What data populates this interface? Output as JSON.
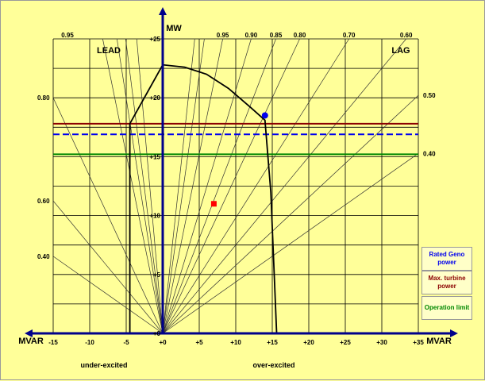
{
  "chart_data": {
    "type": "line",
    "title": "",
    "x_axis": {
      "label": "MVAR",
      "range": [
        -15,
        35
      ],
      "ticks": [
        "-15",
        "-10",
        "-5",
        "+0",
        "+5",
        "+10",
        "+15",
        "+20",
        "+25",
        "+30",
        "+35"
      ]
    },
    "y_axis": {
      "label": "MW",
      "range": [
        0,
        25
      ],
      "ticks": [
        "+0",
        "+5",
        "+10",
        "+15",
        "+20",
        "+25"
      ]
    },
    "y_axis_extra_label": "MVAR",
    "regions": {
      "left": "LEAD",
      "right": "LAG"
    },
    "bottom_labels": {
      "left": "under-excited",
      "right": "over-excited"
    },
    "power_factor_lines": {
      "lag": [
        "0.95",
        "0.90",
        "0.85",
        "0.80",
        "0.70",
        "0.60",
        "0.50",
        "0.40"
      ],
      "lead": [
        "0.95",
        "0.80",
        "0.60",
        "0.40"
      ]
    },
    "capability_curve": [
      [
        -4.5,
        0
      ],
      [
        -4.5,
        17.8
      ],
      [
        0,
        22.8
      ],
      [
        3,
        22.6
      ],
      [
        6,
        22
      ],
      [
        9,
        20.8
      ],
      [
        12,
        19.2
      ],
      [
        14,
        18.1
      ],
      [
        14.8,
        12
      ],
      [
        15.6,
        0
      ]
    ],
    "horizontal_lines": [
      {
        "name": "Max. turbine power",
        "y": 17.8,
        "color": "#8b0000",
        "style": "solid"
      },
      {
        "name": "Rated Geno power",
        "y": 16.9,
        "color": "#0000ee",
        "style": "dashed"
      },
      {
        "name": "Operation limit",
        "y": 15.2,
        "color": "#008800",
        "style": "solid"
      }
    ],
    "points": [
      {
        "x": 14,
        "y": 18.5,
        "color": "#0000ee",
        "shape": "circle"
      },
      {
        "x": 7,
        "y": 11,
        "color": "#ff0000",
        "shape": "square"
      }
    ],
    "grid": true
  },
  "legend": {
    "rated": {
      "text": "Rated Geno power",
      "color": "#0000ee"
    },
    "turbine": {
      "text": "Max. turbine power",
      "color": "#8b0000"
    },
    "operation": {
      "text": "Operation limit",
      "color": "#008800"
    }
  }
}
